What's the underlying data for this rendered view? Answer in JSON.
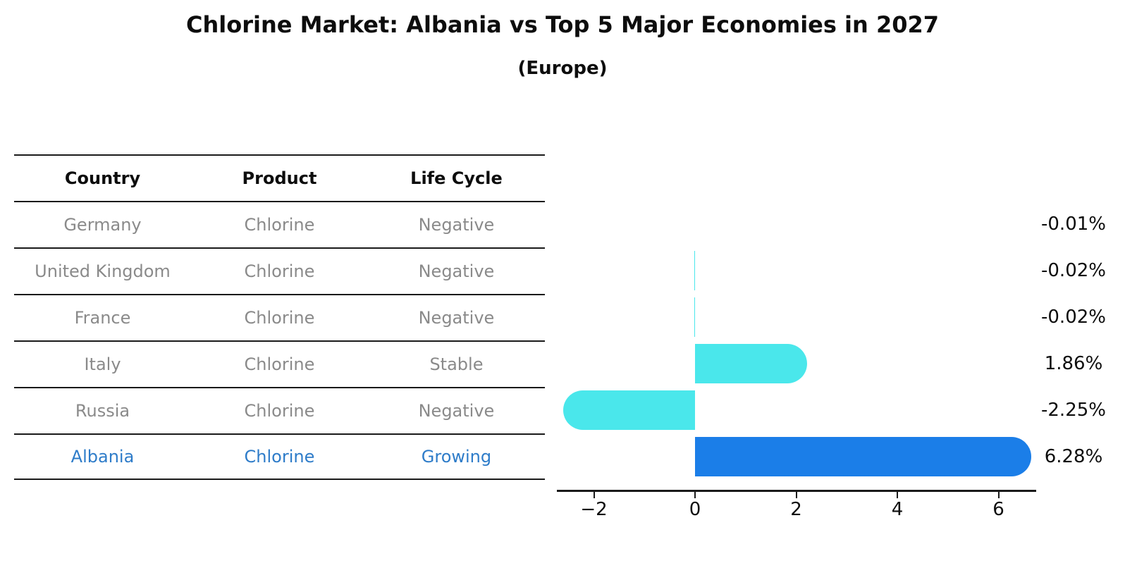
{
  "title": "Chlorine Market: Albania vs Top 5 Major Economies in 2027",
  "subtitle": "(Europe)",
  "table": {
    "headers": [
      "Country",
      "Product",
      "Life Cycle"
    ],
    "rows": [
      {
        "country": "Germany",
        "product": "Chlorine",
        "life_cycle": "Negative",
        "highlight": false
      },
      {
        "country": "United Kingdom",
        "product": "Chlorine",
        "life_cycle": "Negative",
        "highlight": false
      },
      {
        "country": "France",
        "product": "Chlorine",
        "life_cycle": "Negative",
        "highlight": false
      },
      {
        "country": "Italy",
        "product": "Chlorine",
        "life_cycle": "Stable",
        "highlight": false
      },
      {
        "country": "Russia",
        "product": "Chlorine",
        "life_cycle": "Negative",
        "highlight": false
      },
      {
        "country": "Albania",
        "product": "Chlorine",
        "life_cycle": "Growing",
        "highlight": true
      }
    ]
  },
  "chart_data": {
    "type": "bar",
    "orientation": "horizontal",
    "title": "Chlorine Market: Albania vs Top 5 Major Economies in 2027",
    "subtitle": "(Europe)",
    "categories": [
      "Germany",
      "United Kingdom",
      "France",
      "Italy",
      "Russia",
      "Albania"
    ],
    "values": [
      -0.01,
      -0.02,
      -0.02,
      1.86,
      -2.25,
      6.28
    ],
    "value_labels": [
      "-0.01%",
      "-0.02%",
      "-0.02%",
      "1.86%",
      "-2.25%",
      "6.28%"
    ],
    "x_tick_values": [
      -2,
      0,
      2,
      4,
      6
    ],
    "x_tick_labels": [
      "−2",
      "0",
      "2",
      "4",
      "6"
    ],
    "xlim": [
      -2.75,
      6.75
    ],
    "grid": false,
    "legend": false,
    "base_color": "#4ae7eb",
    "highlight_color": "#1b7ee8",
    "highlight_index": 5,
    "highlight_border_style": "dotted",
    "text_color": "#0d0d0d",
    "muted_text_color": "#8a8a8a",
    "highlight_text_color": "#2e7cc9"
  }
}
